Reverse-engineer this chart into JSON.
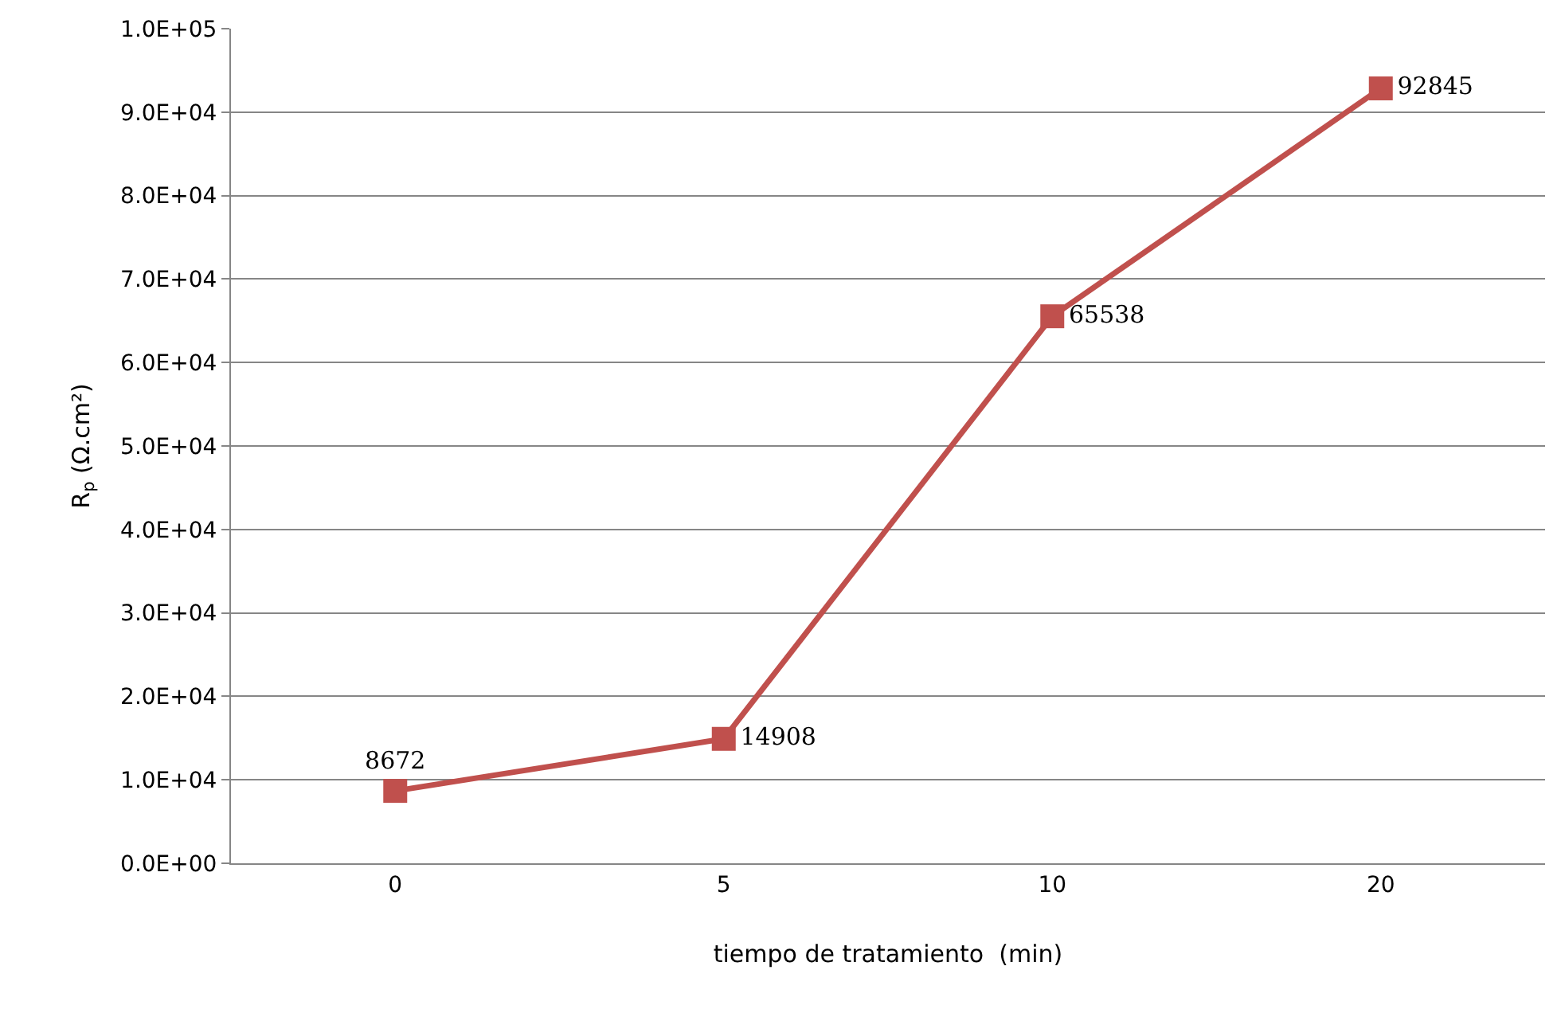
{
  "chart_data": {
    "type": "line",
    "xlabel": "tiempo de tratamiento  (min)",
    "ylabel": "R$_{p}$ (Ω.cm²)",
    "categories": [
      "0",
      "5",
      "10",
      "20"
    ],
    "series": [
      {
        "color": "#c0504d",
        "values": [
          8672,
          14908,
          65538,
          92845
        ]
      }
    ],
    "data_labels": true,
    "marker": "square",
    "line_style": "solid",
    "grid": "y",
    "legend": false,
    "ylim": [
      0,
      100000
    ],
    "yticks": [
      {
        "value": 0,
        "label": "0.0E+00"
      },
      {
        "value": 10000,
        "label": "1.0E+04"
      },
      {
        "value": 20000,
        "label": "2.0E+04"
      },
      {
        "value": 30000,
        "label": "3.0E+04"
      },
      {
        "value": 40000,
        "label": "4.0E+04"
      },
      {
        "value": 50000,
        "label": "5.0E+04"
      },
      {
        "value": 60000,
        "label": "6.0E+04"
      },
      {
        "value": 70000,
        "label": "7.0E+04"
      },
      {
        "value": 80000,
        "label": "8.0E+04"
      },
      {
        "value": 90000,
        "label": "9.0E+04"
      },
      {
        "value": 100000,
        "label": "1.0E+05"
      }
    ]
  }
}
